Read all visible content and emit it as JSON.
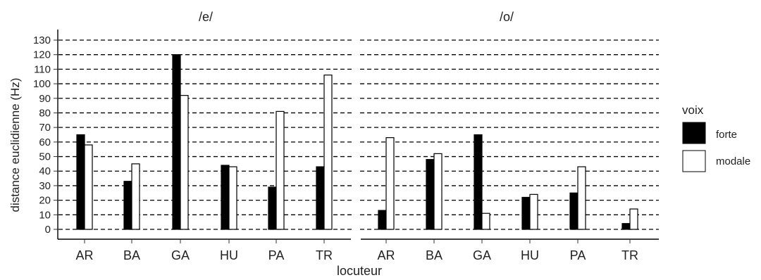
{
  "chart_data": {
    "type": "bar",
    "xlabel": "locuteur",
    "ylabel": "distance euclidienne (Hz)",
    "ylim": [
      0,
      130
    ],
    "yticks": [
      0,
      10,
      20,
      30,
      40,
      50,
      60,
      70,
      80,
      90,
      100,
      110,
      120,
      130
    ],
    "grid": "horizontal dashed",
    "legend": {
      "title": "voix",
      "placement": "right",
      "entries": [
        {
          "name": "forte",
          "color": "#000000"
        },
        {
          "name": "modale",
          "color": "#ffffff"
        }
      ]
    },
    "categories": [
      "AR",
      "BA",
      "GA",
      "HU",
      "PA",
      "TR"
    ],
    "panels": [
      {
        "title": "/e/",
        "series": [
          {
            "name": "forte",
            "values": [
              65,
              33,
              120,
              44,
              29,
              43
            ]
          },
          {
            "name": "modale",
            "values": [
              58,
              45,
              92,
              43,
              81,
              106
            ]
          }
        ]
      },
      {
        "title": "/o/",
        "series": [
          {
            "name": "forte",
            "values": [
              13,
              48,
              65,
              22,
              25,
              4
            ]
          },
          {
            "name": "modale",
            "values": [
              63,
              52,
              11,
              24,
              43,
              14
            ]
          }
        ]
      }
    ]
  }
}
